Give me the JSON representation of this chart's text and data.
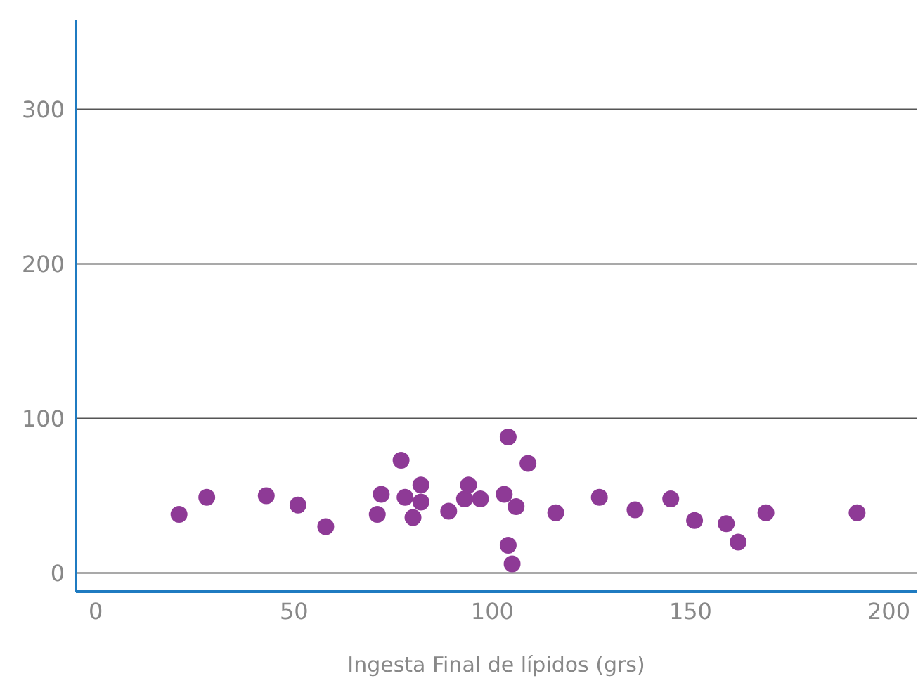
{
  "chart_data": {
    "type": "scatter",
    "xlabel": "Ingesta Final de lípidos (grs)",
    "color": "#8e3a96",
    "marker": "circle",
    "x": [
      21,
      28,
      43,
      51,
      58,
      71,
      72,
      77,
      78,
      80,
      82,
      82,
      89,
      93,
      94,
      97,
      103,
      104,
      104,
      105,
      106,
      109,
      116,
      127,
      136,
      145,
      151,
      159,
      162,
      169,
      192
    ],
    "values": [
      38,
      49,
      50,
      44,
      30,
      38,
      51,
      73,
      49,
      36,
      57,
      46,
      40,
      48,
      57,
      48,
      51,
      88,
      18,
      6,
      43,
      71,
      39,
      49,
      41,
      48,
      34,
      32,
      20,
      39,
      39
    ],
    "xlim": [
      -5,
      207
    ],
    "xticks": [
      0,
      50,
      100,
      150,
      200
    ],
    "ylim": [
      -12,
      358
    ],
    "yticks": [
      0,
      100,
      200,
      300
    ],
    "grid": "y",
    "legend": false
  }
}
